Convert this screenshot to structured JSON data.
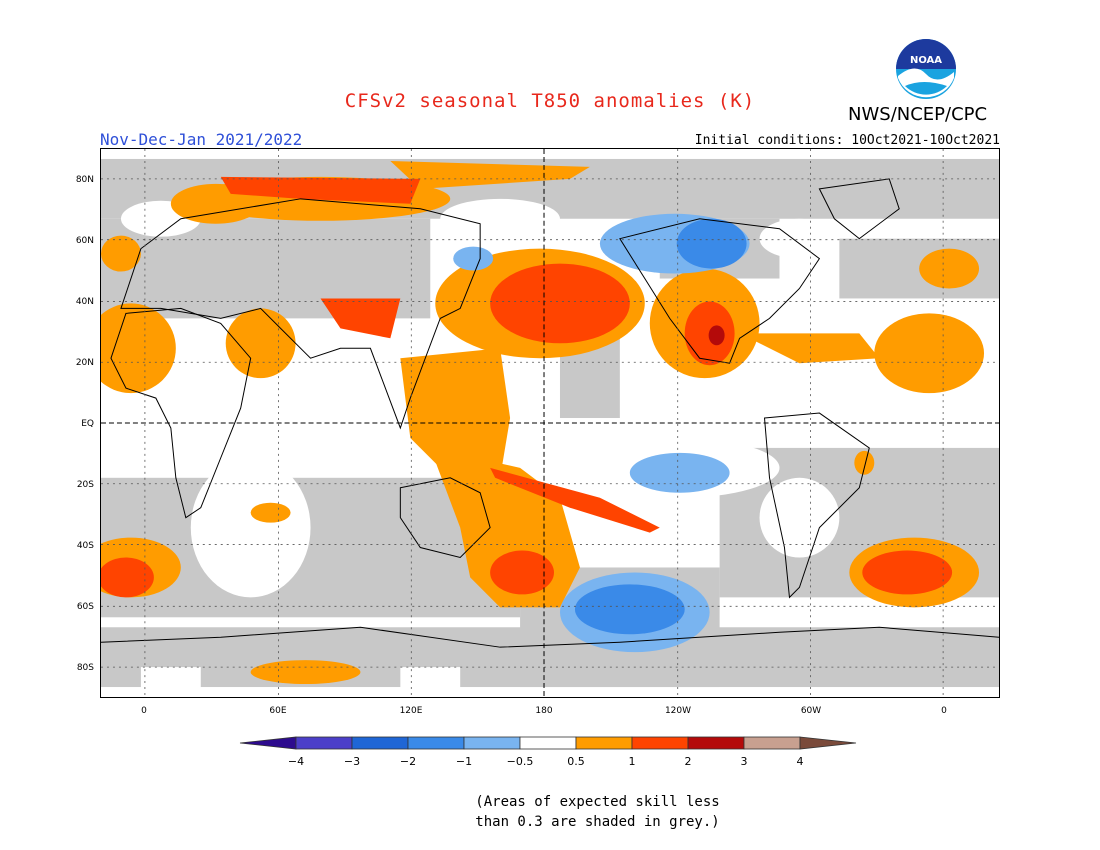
{
  "header": {
    "title": "CFSv2 seasonal T850 anomalies (K)",
    "agency": "NWS/NCEP/CPC",
    "logo_text": "NOAA",
    "period": "Nov-Dec-Jan 2021/2022",
    "initial_conditions": "Initial conditions: 10Oct2021-10Oct2021"
  },
  "map": {
    "projection": "equirectangular, centered on 180",
    "lat_labels": [
      "80N",
      "60N",
      "40N",
      "20N",
      "EQ",
      "20S",
      "40S",
      "60S",
      "80S"
    ],
    "lon_labels": [
      "0",
      "60E",
      "120E",
      "180",
      "120W",
      "60W",
      "0"
    ],
    "grid": "dotted",
    "reference_lines": [
      "EQ",
      "180"
    ]
  },
  "colorbar": {
    "ticks": [
      "−4",
      "−3",
      "−2",
      "−1",
      "−0.5",
      "0.5",
      "1",
      "2",
      "3",
      "4"
    ],
    "colors": [
      "#2d0b8e",
      "#4b3fc9",
      "#1f66d6",
      "#3a8ae8",
      "#79b4f0",
      "#ffffff",
      "#ff9c00",
      "#ff4400",
      "#b40a0a",
      "#c8a090",
      "#7a4a3a"
    ],
    "skill_mask_color": "#c8c8c8"
  },
  "footnote": {
    "line1": "(Areas of expected skill less",
    "line2": "than 0.3 are shaded in grey.)"
  }
}
